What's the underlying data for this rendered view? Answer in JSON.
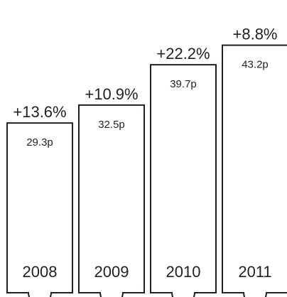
{
  "chart_data": {
    "type": "bar",
    "categories": [
      "2008",
      "2009",
      "2010",
      "2011"
    ],
    "values": [
      29.3,
      32.5,
      39.7,
      43.2
    ],
    "value_labels": [
      "29.3p",
      "32.5p",
      "39.7p",
      "43.2p"
    ],
    "growth_labels": [
      "+13.6%",
      "+10.9%",
      "+22.2%",
      "+8.8%"
    ],
    "title": "",
    "xlabel": "",
    "ylabel": "",
    "grid": false,
    "legend": "none",
    "colors": {
      "bar_fill": "#ffffff",
      "stroke": "#231f20",
      "text": "#231f20"
    }
  }
}
